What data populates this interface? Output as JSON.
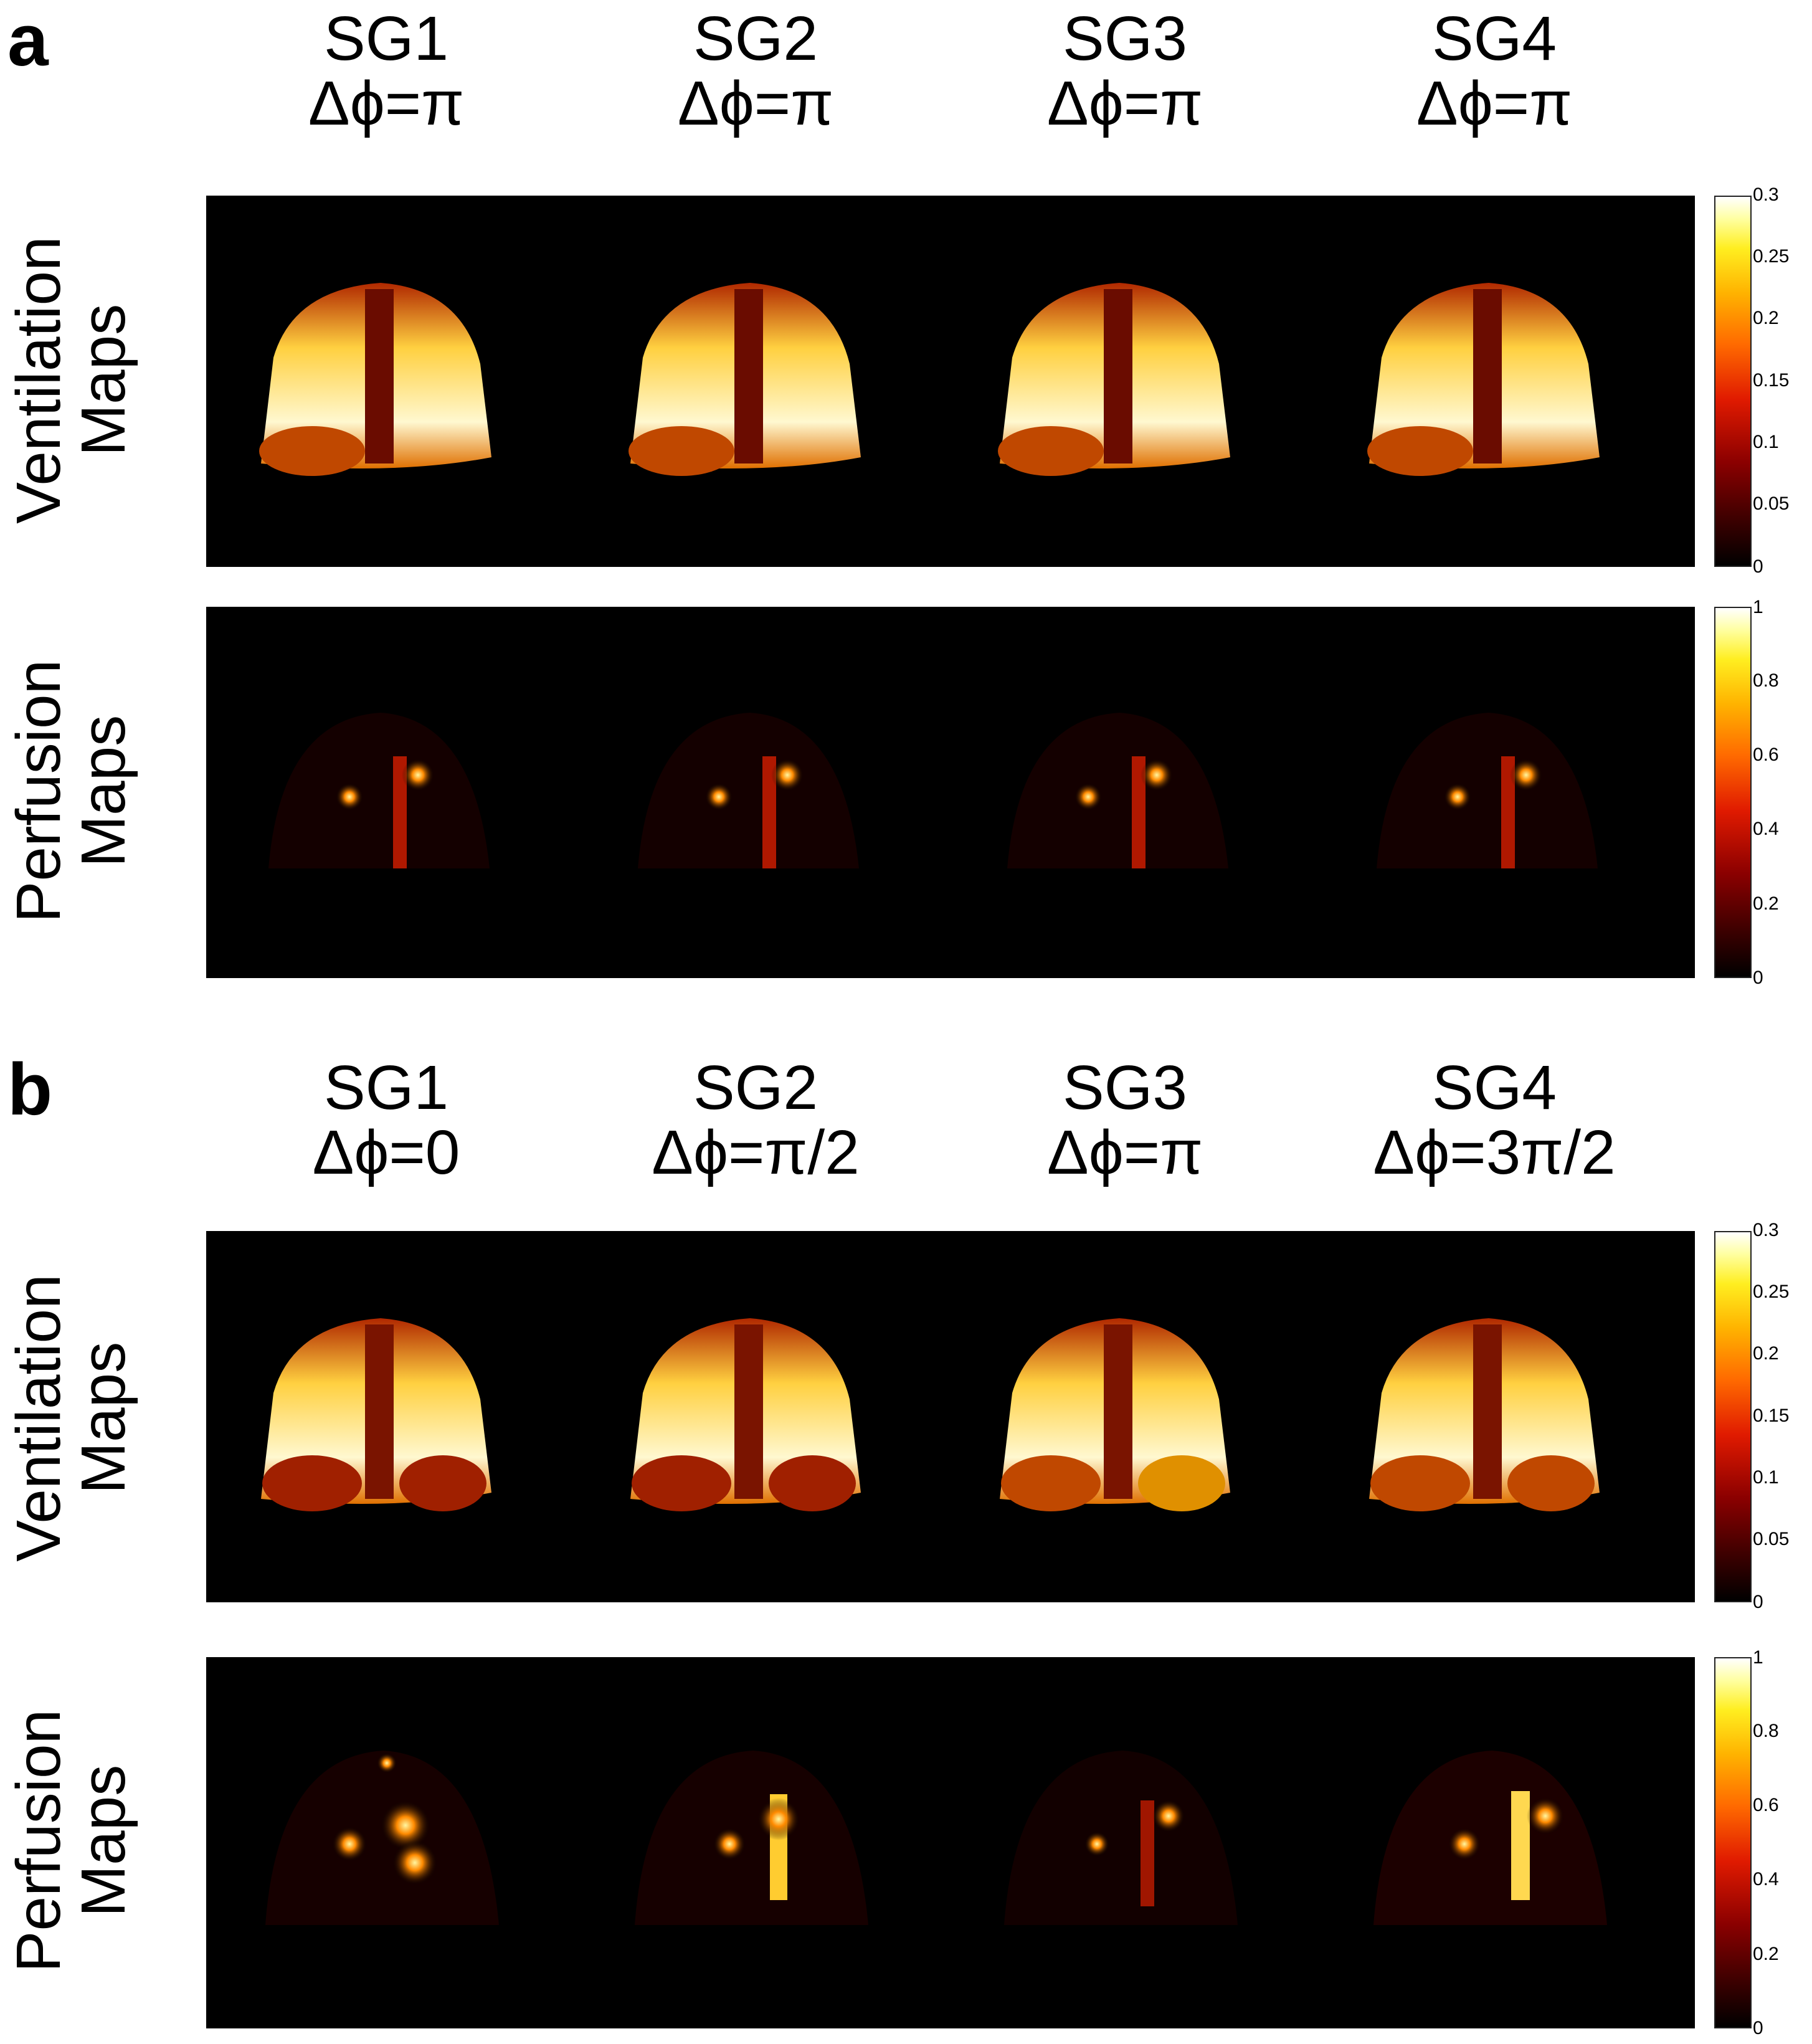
{
  "panels": [
    {
      "letter": "a",
      "columns": [
        {
          "sg": "SG1",
          "phase": "Δϕ=π"
        },
        {
          "sg": "SG2",
          "phase": "Δϕ=π"
        },
        {
          "sg": "SG3",
          "phase": "Δϕ=π"
        },
        {
          "sg": "SG4",
          "phase": "Δϕ=π"
        }
      ],
      "rows": [
        {
          "label_line1": "Ventilation",
          "label_line2": "Maps",
          "colorbar_ticks": [
            "0.3",
            "0.25",
            "0.2",
            "0.15",
            "0.1",
            "0.05",
            "0"
          ]
        },
        {
          "label_line1": "Perfusion",
          "label_line2": "Maps",
          "colorbar_ticks": [
            "1",
            "0.8",
            "0.6",
            "0.4",
            "0.2",
            "0"
          ]
        }
      ]
    },
    {
      "letter": "b",
      "columns": [
        {
          "sg": "SG1",
          "phase": "Δϕ=0"
        },
        {
          "sg": "SG2",
          "phase": "Δϕ=π/2"
        },
        {
          "sg": "SG3",
          "phase": "Δϕ=π"
        },
        {
          "sg": "SG4",
          "phase": "Δϕ=3π/2"
        }
      ],
      "rows": [
        {
          "label_line1": "Ventilation",
          "label_line2": "Maps",
          "colorbar_ticks": [
            "0.3",
            "0.25",
            "0.2",
            "0.15",
            "0.1",
            "0.05",
            "0"
          ]
        },
        {
          "label_line1": "Perfusion",
          "label_line2": "Maps",
          "colorbar_ticks": [
            "1",
            "0.8",
            "0.6",
            "0.4",
            "0.2",
            "0"
          ]
        }
      ]
    }
  ],
  "colormap": {
    "low": "#000000",
    "mid": "#e01a00",
    "high": "#ffffff"
  }
}
